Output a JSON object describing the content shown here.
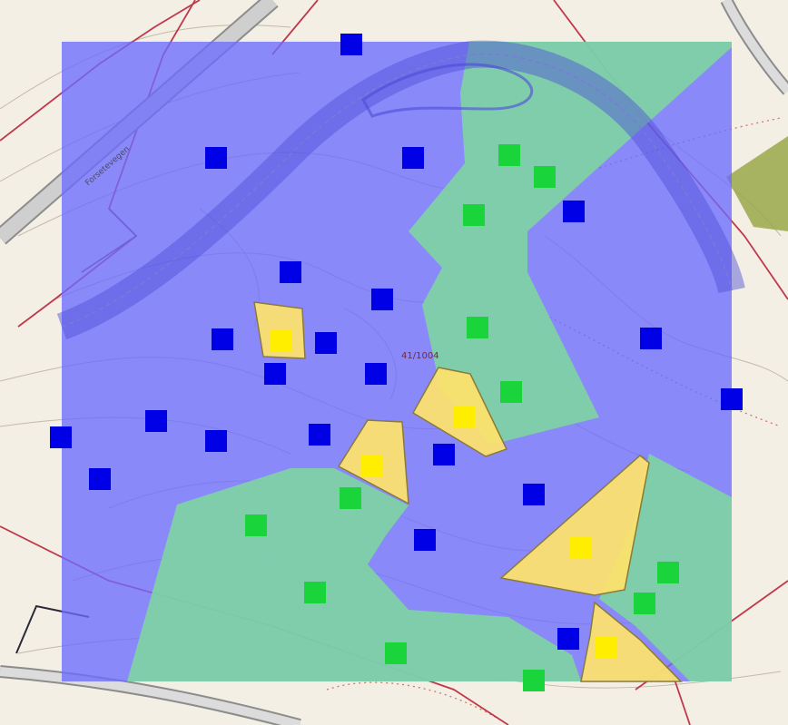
{
  "map": {
    "parcel_label": "41/1004",
    "road_label": "Forsetevegen",
    "colors": {
      "background": "#f3efe4",
      "blue_zone": "#6b6bff",
      "green_zone": "#7ed6a0",
      "yellow_zone": "#ffe36a",
      "blue_marker": "#0000e6",
      "green_marker": "#19d43a",
      "yellow_marker": "#ffee00",
      "property_line": "#c0394b",
      "road_fill": "#cfcfcf",
      "contour": "#b7ad9c"
    },
    "marker_counts": {
      "blue": 25,
      "green": 14,
      "yellow": 6
    }
  }
}
